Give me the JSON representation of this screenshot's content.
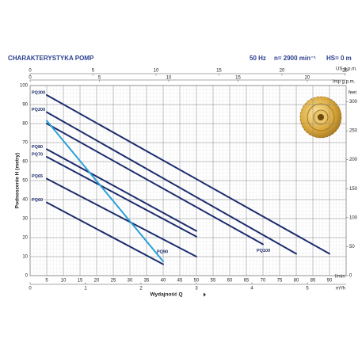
{
  "chart_data": {
    "type": "line",
    "title": "CHARAKTERYSTYKA POMP",
    "subtitle": [
      "50 Hz",
      "n= 2900 min⁻¹",
      "HS= 0 m"
    ],
    "ylabel": "Podnoszenie H (metry)",
    "xlabel": "Wydajność Q",
    "x_unit": "l/min",
    "xlim": [
      0,
      95
    ],
    "xticks": [
      5,
      10,
      15,
      20,
      25,
      30,
      35,
      40,
      45,
      50,
      55,
      60,
      65,
      70,
      75,
      80,
      85,
      90
    ],
    "ylim": [
      0,
      100
    ],
    "yticks": [
      0,
      10,
      20,
      30,
      40,
      50,
      60,
      70,
      80,
      90,
      100
    ],
    "y2label": "feet",
    "y2lim": [
      0,
      328
    ],
    "y2ticks": [
      0,
      50,
      100,
      150,
      200,
      250,
      300
    ],
    "x2": {
      "label": "m³/h",
      "xlim": [
        0,
        5.7
      ],
      "xticks": [
        0,
        1,
        2,
        3,
        4,
        5
      ]
    },
    "x_top": {
      "label": "US g.p.m.",
      "xlim": [
        0,
        25.1
      ],
      "xticks": [
        0,
        5,
        10,
        15,
        20,
        25
      ]
    },
    "x_top2": {
      "label": "Imp g.p.m.",
      "xlim": [
        0,
        22.8
      ],
      "xticks": [
        0,
        5,
        10,
        15,
        20
      ]
    },
    "grid": true,
    "series": [
      {
        "name": "PQ300",
        "color": "#1c2e6e",
        "x": [
          5,
          90
        ],
        "values": [
          95,
          11.5
        ]
      },
      {
        "name": "PQ200",
        "color": "#1c2e6e",
        "x": [
          5,
          80
        ],
        "values": [
          86,
          11.5
        ]
      },
      {
        "name": "PQ100",
        "color": "#1c2e6e",
        "x": [
          5,
          70
        ],
        "values": [
          80,
          16.5
        ]
      },
      {
        "name": "PQ80",
        "color": "#1c2e6e",
        "x": [
          5,
          50
        ],
        "values": [
          66.5,
          23.5
        ]
      },
      {
        "name": "PQ70",
        "color": "#1c2e6e",
        "x": [
          5,
          50
        ],
        "values": [
          62.5,
          20.5
        ]
      },
      {
        "name": "PQ65",
        "color": "#1c2e6e",
        "x": [
          5,
          50
        ],
        "values": [
          51,
          10
        ]
      },
      {
        "name": "PQ60",
        "color": "#1c2e6e",
        "x": [
          5,
          40
        ],
        "values": [
          38.5,
          6
        ]
      },
      {
        "name": "PQ90",
        "color": "#2a9fd8",
        "x": [
          5,
          40
        ],
        "values": [
          81.5,
          7.5
        ]
      }
    ]
  }
}
